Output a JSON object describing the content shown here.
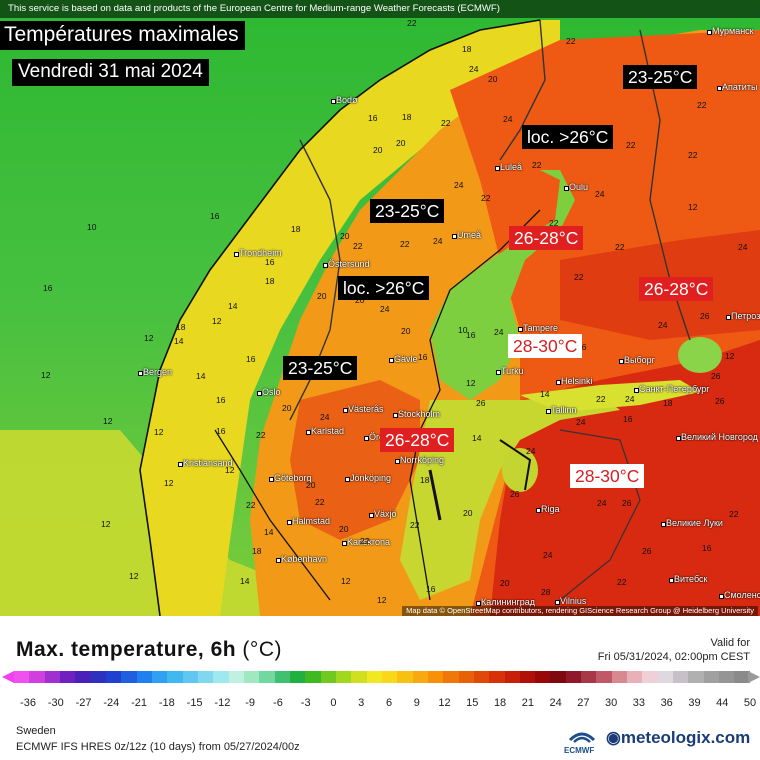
{
  "header": {
    "disclaimer": "This service is based on data and products of the European Centre for Medium-range Weather Forecasts (ECMWF)",
    "title": "Températures maximales",
    "date": "Vendredi 31 mai 2024"
  },
  "labels": [
    {
      "text": "23-25°C",
      "style": "black"
    },
    {
      "text": "loc. >26°C",
      "style": "black"
    },
    {
      "text": "23-25°C",
      "style": "black"
    },
    {
      "text": "26-28°C",
      "style": "red"
    },
    {
      "text": "loc. >26°C",
      "style": "black"
    },
    {
      "text": "26-28°C",
      "style": "red"
    },
    {
      "text": "28-30°C",
      "style": "white"
    },
    {
      "text": "23-25°C",
      "style": "black"
    },
    {
      "text": "26-28°C",
      "style": "red"
    },
    {
      "text": "28-30°C",
      "style": "white"
    }
  ],
  "cities": [
    "Bodø",
    "Luleå",
    "Oulu",
    "Umeå",
    "Trondheim",
    "Östersund",
    "Tampere",
    "Bergen",
    "Gävle",
    "Turku",
    "Helsinki",
    "Выборг",
    "Санкт-Петербург",
    "Oslo",
    "Västerås",
    "Stockholm",
    "Tallinn",
    "Karlstad",
    "Örebro",
    "Norrköping",
    "Великий Новгород",
    "Kristiansand",
    "Göteborg",
    "Jönköping",
    "Riga",
    "Великие Луки",
    "Halmstad",
    "Växjö",
    "Karlskrona",
    "København",
    "Витебск",
    "Калининград",
    "Vilnius",
    "Мурманск",
    "Апатиты",
    "Петрозаводск",
    "Смоленск"
  ],
  "map_numbers": [
    "22",
    "18",
    "20",
    "22",
    "22",
    "16",
    "18",
    "20",
    "22",
    "24",
    "22",
    "22",
    "20",
    "24",
    "22",
    "22",
    "24",
    "20",
    "18",
    "22",
    "22",
    "24",
    "22",
    "24",
    "26",
    "24",
    "22",
    "16",
    "20",
    "10",
    "18",
    "20",
    "24",
    "22",
    "26",
    "12",
    "18",
    "14",
    "12",
    "16",
    "16",
    "20",
    "22",
    "26",
    "16",
    "24",
    "10",
    "12",
    "14",
    "16",
    "26",
    "22",
    "24",
    "12",
    "14",
    "16",
    "18",
    "20",
    "24",
    "24",
    "26",
    "12",
    "12",
    "16",
    "22",
    "14",
    "18",
    "20",
    "22",
    "24",
    "26",
    "12",
    "12",
    "22",
    "24",
    "26",
    "12",
    "18",
    "14",
    "20",
    "22",
    "12",
    "14",
    "24",
    "20",
    "16",
    "12",
    "22",
    "26",
    "28",
    "12",
    "20",
    "22",
    "16",
    "22",
    "26",
    "12",
    "24",
    "16",
    "14",
    "16",
    "12",
    "24"
  ],
  "attribution": "Map data © OpenStreetMap contributors, rendering GIScience Research Group @ Heidelberg University",
  "footer": {
    "title": "Max. temperature, 6h",
    "unit": "(°C)",
    "valid_label": "Valid for",
    "valid_time": "Fri 05/31/2024, 02:00pm CEST",
    "region": "Sweden",
    "model": "ECMWF IFS HRES 0z/12z (10 days) from 05/27/2024/00z",
    "ecmwf_logo_text": "ECMWF",
    "brand": "meteologix.com"
  },
  "scale": {
    "ticks": [
      "-36",
      "-30",
      "-27",
      "-24",
      "-21",
      "-18",
      "-15",
      "-12",
      "-9",
      "-6",
      "-3",
      "0",
      "3",
      "6",
      "9",
      "12",
      "15",
      "18",
      "21",
      "24",
      "27",
      "30",
      "33",
      "36",
      "39",
      "44",
      "50"
    ],
    "colors": [
      "#f050f0",
      "#d040e0",
      "#a030d0",
      "#7020c0",
      "#4a20b8",
      "#3030c0",
      "#2040d0",
      "#2060e0",
      "#2080f0",
      "#30a0f0",
      "#40b8f0",
      "#60c8f0",
      "#80d8f0",
      "#a0e8f0",
      "#c0f0e0",
      "#a0e8c0",
      "#70d8a0",
      "#40c070",
      "#20b040",
      "#40b820",
      "#70c820",
      "#a0d820",
      "#d0e020",
      "#f0e820",
      "#f8d818",
      "#f8c010",
      "#f8a810",
      "#f89008",
      "#f07808",
      "#e86008",
      "#e04808",
      "#d83008",
      "#c82008",
      "#b01008",
      "#980808",
      "#800810",
      "#901828",
      "#a83848",
      "#c05868",
      "#d88890",
      "#e8b0b8",
      "#f0d0d8",
      "#e0d8e0",
      "#c8c0c8",
      "#b0b0b0",
      "#a0a0a0",
      "#959595",
      "#8a8a8a"
    ]
  }
}
